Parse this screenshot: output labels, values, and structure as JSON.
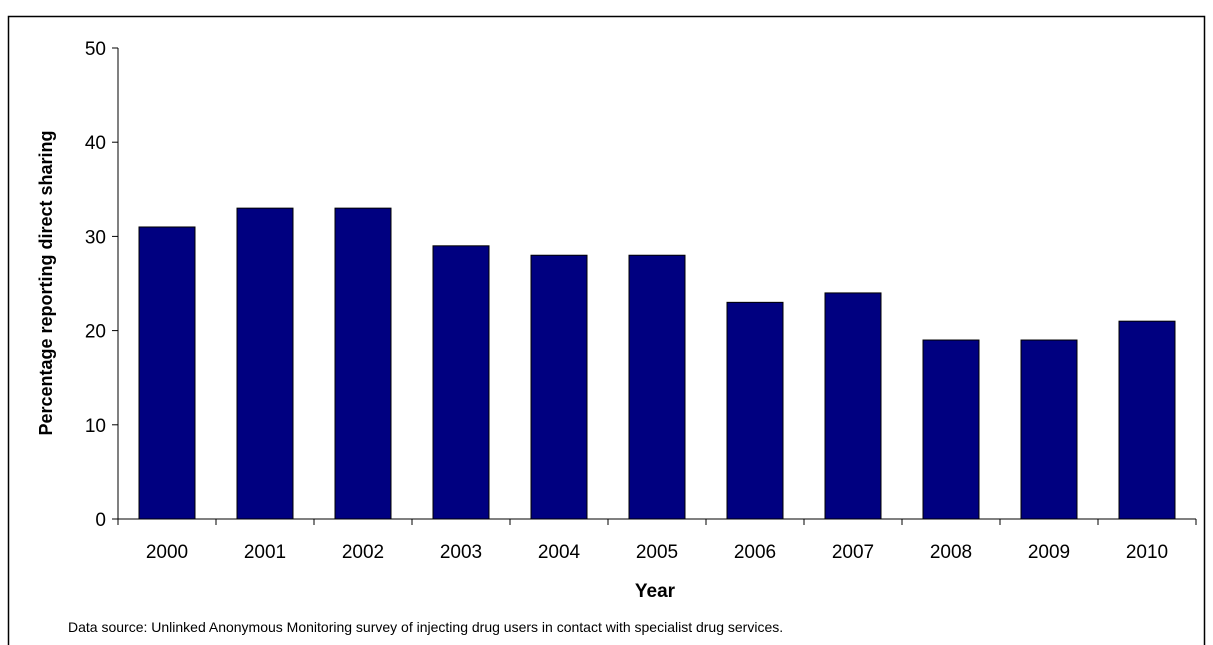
{
  "chart_data": {
    "type": "bar",
    "categories": [
      "2000",
      "2001",
      "2002",
      "2003",
      "2004",
      "2005",
      "2006",
      "2007",
      "2008",
      "2009",
      "2010"
    ],
    "values": [
      31,
      33,
      33,
      29,
      28,
      28,
      23,
      24,
      19,
      19,
      21
    ],
    "xlabel": "Year",
    "ylabel": "Percentage reporting direct sharing",
    "ylim": [
      0,
      50
    ],
    "yticks": [
      0,
      10,
      20,
      30,
      40,
      50
    ],
    "grid": false,
    "bar_color": "#000080"
  },
  "footnote": "Data source: Unlinked Anonymous Monitoring survey of injecting drug users in contact with specialist drug services."
}
